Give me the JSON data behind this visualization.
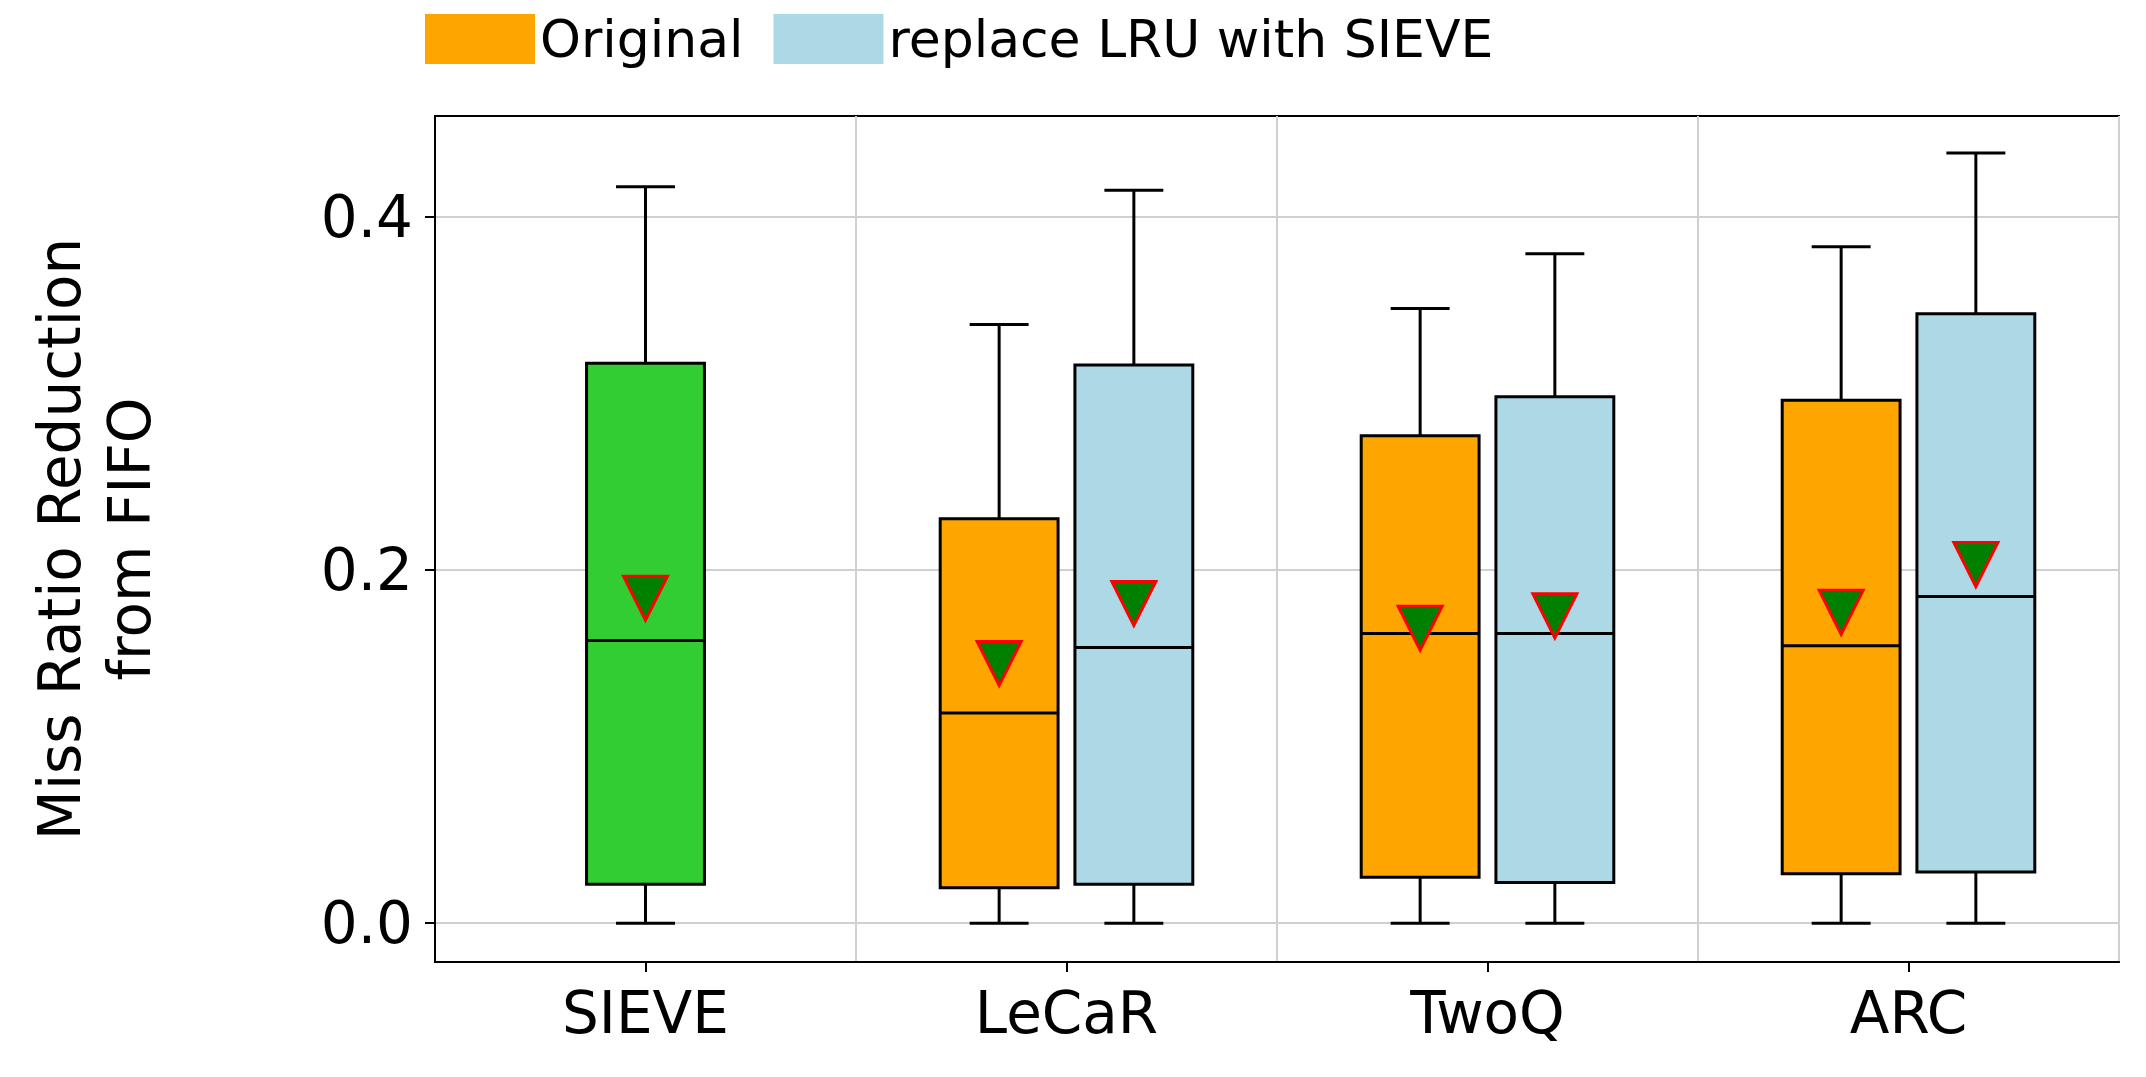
{
  "chart_data": {
    "type": "box",
    "ylabel": "Miss Ratio Reduction\nfrom FIFO",
    "categories": [
      "SIEVE",
      "LeCaR",
      "TwoQ",
      "ARC"
    ],
    "series": [
      {
        "color": "#32cd32",
        "boxes": [
          {
            "low": 0,
            "q1": 0.022,
            "median": 0.16,
            "q3": 0.317,
            "high": 0.417,
            "mean": 0.184
          },
          null,
          null,
          null
        ]
      },
      {
        "name": "Original",
        "color": "#ffa500",
        "boxes": [
          null,
          {
            "low": 0,
            "q1": 0.02,
            "median": 0.119,
            "q3": 0.229,
            "high": 0.339,
            "mean": 0.147
          },
          {
            "low": 0,
            "q1": 0.026,
            "median": 0.164,
            "q3": 0.276,
            "high": 0.348,
            "mean": 0.167
          },
          {
            "low": 0,
            "q1": 0.028,
            "median": 0.157,
            "q3": 0.296,
            "high": 0.383,
            "mean": 0.176
          }
        ]
      },
      {
        "name": "replace LRU with SIEVE",
        "color": "#add8e6",
        "boxes": [
          null,
          {
            "low": 0,
            "q1": 0.022,
            "median": 0.156,
            "q3": 0.316,
            "high": 0.415,
            "mean": 0.181
          },
          {
            "low": 0,
            "q1": 0.023,
            "median": 0.164,
            "q3": 0.298,
            "high": 0.379,
            "mean": 0.174
          },
          {
            "low": 0,
            "q1": 0.029,
            "median": 0.185,
            "q3": 0.345,
            "high": 0.436,
            "mean": 0.203
          }
        ]
      }
    ],
    "ylim": [
      -0.022,
      0.457
    ],
    "yticks": [
      {
        "value": 0,
        "label": "0.0"
      },
      {
        "value": 0.2,
        "label": "0.2"
      },
      {
        "value": 0.4,
        "label": "0.4"
      }
    ],
    "grid": true,
    "legend": "top"
  }
}
